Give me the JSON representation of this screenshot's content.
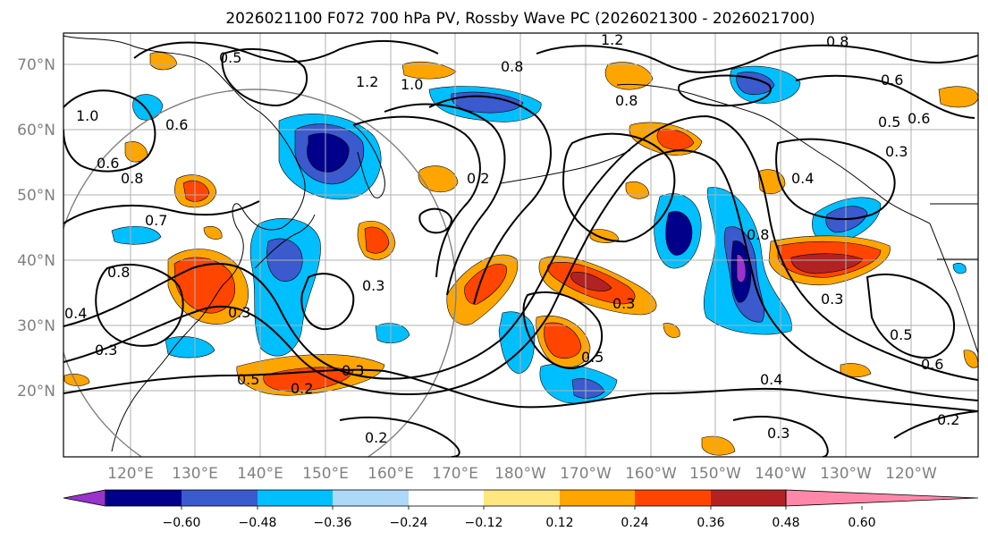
{
  "title": "2026021100 F072 700 hPa PV, Rossby Wave PC (2026021300 - 2026021700)",
  "map": {
    "lat_labels": [
      "70°N",
      "60°N",
      "50°N",
      "40°N",
      "30°N",
      "20°N"
    ],
    "lon_labels": [
      "120°E",
      "130°E",
      "140°E",
      "150°E",
      "160°E",
      "170°E",
      "180°W",
      "170°W",
      "160°W",
      "150°W",
      "140°W",
      "130°W",
      "120°W"
    ],
    "contour_labels": [
      "0.5",
      "1.0",
      "0.6",
      "0.6",
      "0.8",
      "0.7",
      "0.8",
      "0.4",
      "0.3",
      "0.5",
      "0.2",
      "0.3",
      "0.3",
      "0.3",
      "0.2",
      "1.2",
      "1.0",
      "0.8",
      "1.2",
      "0.8",
      "0.6",
      "0.8",
      "0.6",
      "0.5",
      "0.3",
      "0.4",
      "0.8",
      "0.3",
      "0.3",
      "0.5",
      "0.4",
      "0.2",
      "0.3",
      "0.5",
      "0.6",
      "0.2"
    ]
  },
  "colorbar": {
    "tick_labels": [
      "−0.60",
      "−0.48",
      "−0.36",
      "−0.24",
      "−0.12",
      "0.12",
      "0.24",
      "0.36",
      "0.48",
      "0.60"
    ],
    "colors": [
      "#9933cc",
      "#00008b",
      "#3a5acd",
      "#00bfff",
      "#add8f7",
      "#ffffff",
      "#ffe680",
      "#ffa500",
      "#ff4500",
      "#b22222",
      "#ff88aa"
    ]
  }
}
